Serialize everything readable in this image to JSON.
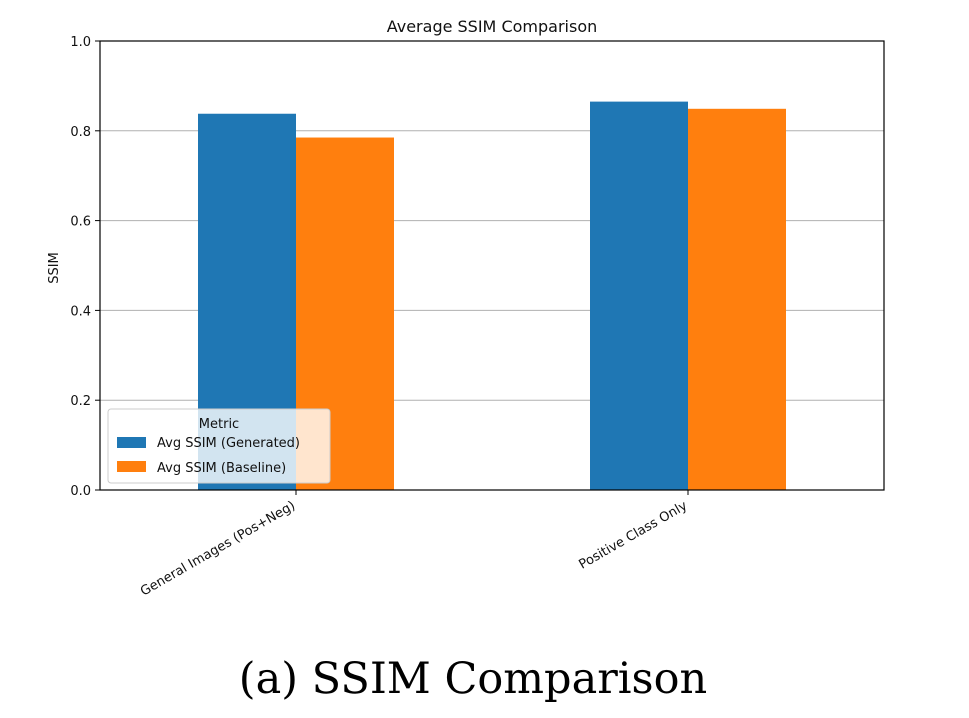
{
  "caption": "(a) SSIM Comparison",
  "chart_data": {
    "type": "bar",
    "title": "Average SSIM Comparison",
    "xlabel": "",
    "ylabel": "SSIM",
    "categories": [
      "General Images (Pos+Neg)",
      "Positive Class Only"
    ],
    "series": [
      {
        "name": "Avg SSIM (Generated)",
        "values": [
          0.838,
          0.865
        ],
        "color": "#1f77b4"
      },
      {
        "name": "Avg SSIM (Baseline)",
        "values": [
          0.785,
          0.849
        ],
        "color": "#ff7f0e"
      }
    ],
    "ylim": [
      0.0,
      1.0
    ],
    "yticks": [
      "0.0",
      "0.2",
      "0.4",
      "0.6",
      "0.8",
      "1.0"
    ],
    "grid": "horizontal",
    "legend": {
      "title": "Metric",
      "placement": "lower-left"
    }
  }
}
